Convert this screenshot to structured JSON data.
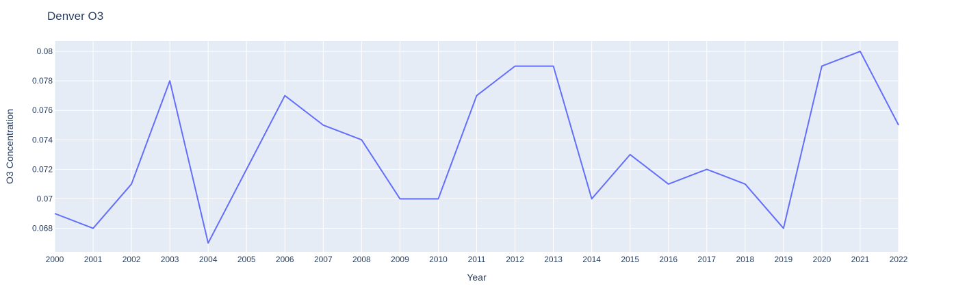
{
  "chart_data": {
    "type": "line",
    "title": "Denver O3",
    "xlabel": "Year",
    "ylabel": "O3 Concentration",
    "x": [
      2000,
      2001,
      2002,
      2003,
      2004,
      2005,
      2006,
      2007,
      2008,
      2009,
      2010,
      2011,
      2012,
      2013,
      2014,
      2015,
      2016,
      2017,
      2018,
      2019,
      2020,
      2021,
      2022
    ],
    "series": [
      {
        "values": [
          0.069,
          0.068,
          0.071,
          0.078,
          0.067,
          0.072,
          0.077,
          0.075,
          0.074,
          0.07,
          0.07,
          0.077,
          0.079,
          0.079,
          0.07,
          0.073,
          0.071,
          0.072,
          0.071,
          0.068,
          0.079,
          0.08,
          0.075
        ]
      }
    ],
    "xlim": [
      2000,
      2022
    ],
    "ylim": [
      0.0664,
      0.0807
    ],
    "yticks": [
      0.068,
      0.07,
      0.072,
      0.074,
      0.076,
      0.078,
      0.08
    ],
    "ytick_labels": [
      "0.068",
      "0.07",
      "0.072",
      "0.074",
      "0.076",
      "0.078",
      "0.08"
    ],
    "grid": true,
    "colors": {
      "line": "#636efa",
      "plot_bg": "#e5ecf6",
      "grid": "#ffffff",
      "text": "#2a3f5f"
    }
  }
}
